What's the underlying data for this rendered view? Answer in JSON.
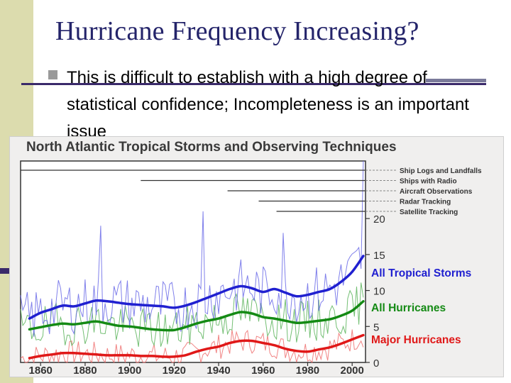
{
  "slide": {
    "title": "Hurricane Frequency Increasing?",
    "bullet": "This is difficult to establish with a high degree of statistical confidence; Incompleteness is an important issue"
  },
  "colors": {
    "title": "#24246a",
    "all_storms": "#2020d0",
    "all_storms_raw": "#6a6ae8",
    "hurricanes": "#148a14",
    "hurricanes_raw": "#5cb45c",
    "major": "#e01818",
    "major_raw": "#ee7070"
  },
  "chart_data": {
    "type": "line",
    "title": "North Atlantic Tropical Storms and Observing Techniques",
    "x_ticks": [
      1860,
      1880,
      1900,
      1920,
      1940,
      1960,
      1980,
      2000
    ],
    "y_ticks": [
      0,
      5,
      10,
      15,
      20
    ],
    "xlim": [
      1851,
      2006
    ],
    "ylim": [
      0,
      28
    ],
    "observing_techniques": [
      {
        "label": "Ship Logs and Landfalls",
        "start_year": 1851
      },
      {
        "label": "Ships with Radio",
        "start_year": 1905
      },
      {
        "label": "Aircraft Observations",
        "start_year": 1944
      },
      {
        "label": "Radar Tracking",
        "start_year": 1958
      },
      {
        "label": "Satellite Tracking",
        "start_year": 1966
      }
    ],
    "series": [
      {
        "name": "All Tropical Storms",
        "x": [
          1855,
          1860,
          1865,
          1870,
          1875,
          1880,
          1885,
          1890,
          1895,
          1900,
          1905,
          1910,
          1915,
          1920,
          1925,
          1930,
          1935,
          1940,
          1945,
          1950,
          1955,
          1960,
          1965,
          1970,
          1975,
          1980,
          1985,
          1990,
          1995,
          2000,
          2005
        ],
        "values": [
          6.1,
          6.9,
          7.4,
          7.9,
          7.8,
          8.2,
          8.6,
          8.5,
          8.3,
          8.1,
          8.0,
          7.9,
          7.8,
          7.6,
          7.9,
          8.4,
          9.0,
          9.6,
          10.2,
          10.6,
          10.3,
          9.8,
          10.2,
          9.7,
          9.2,
          9.4,
          9.8,
          10.2,
          11.2,
          12.6,
          14.8
        ],
        "raw_peaks": [
          {
            "year": 1887,
            "value": 19
          },
          {
            "year": 1933,
            "value": 21
          },
          {
            "year": 1969,
            "value": 18
          },
          {
            "year": 2005,
            "value": 28
          }
        ]
      },
      {
        "name": "All Hurricanes",
        "x": [
          1855,
          1860,
          1865,
          1870,
          1875,
          1880,
          1885,
          1890,
          1895,
          1900,
          1905,
          1910,
          1915,
          1920,
          1925,
          1930,
          1935,
          1940,
          1945,
          1950,
          1955,
          1960,
          1965,
          1970,
          1975,
          1980,
          1985,
          1990,
          1995,
          2000,
          2005
        ],
        "values": [
          4.6,
          4.9,
          5.2,
          5.4,
          5.3,
          5.5,
          5.7,
          5.4,
          5.1,
          5.0,
          4.8,
          4.6,
          4.5,
          4.5,
          4.9,
          5.4,
          5.8,
          6.1,
          6.6,
          7.0,
          6.8,
          6.3,
          6.1,
          5.8,
          5.5,
          5.6,
          5.8,
          6.0,
          6.5,
          7.2,
          8.5
        ]
      },
      {
        "name": "Major Hurricanes",
        "x": [
          1855,
          1860,
          1865,
          1870,
          1875,
          1880,
          1885,
          1890,
          1895,
          1900,
          1905,
          1910,
          1915,
          1920,
          1925,
          1930,
          1935,
          1940,
          1945,
          1950,
          1955,
          1960,
          1965,
          1970,
          1975,
          1980,
          1985,
          1990,
          1995,
          2000,
          2005
        ],
        "values": [
          0.6,
          0.9,
          1.1,
          1.3,
          1.3,
          1.2,
          1.1,
          1.0,
          1.0,
          1.0,
          0.9,
          0.9,
          0.8,
          0.8,
          1.0,
          1.5,
          1.9,
          2.2,
          2.7,
          3.0,
          3.0,
          2.7,
          2.4,
          1.9,
          1.6,
          1.5,
          1.8,
          2.1,
          2.6,
          3.2,
          3.8
        ]
      }
    ]
  }
}
